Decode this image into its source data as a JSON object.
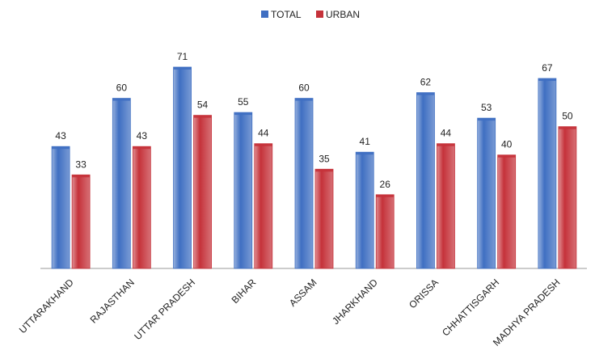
{
  "chart_data": {
    "type": "bar",
    "categories": [
      "UTTARAKHAND",
      "RAJASTHAN",
      "UTTAR PRADESH",
      "BIHAR",
      "ASSAM",
      "JHARKHAND",
      "ORISSA",
      "CHHATTISGARH",
      "MADHYA PRADESH"
    ],
    "series": [
      {
        "name": "TOTAL",
        "color": "#3f6fc2",
        "values": [
          43,
          60,
          71,
          55,
          60,
          41,
          62,
          53,
          67
        ]
      },
      {
        "name": "URBAN",
        "color": "#c5323a",
        "values": [
          33,
          43,
          54,
          44,
          35,
          26,
          44,
          40,
          50
        ]
      }
    ],
    "legend": "top"
  }
}
